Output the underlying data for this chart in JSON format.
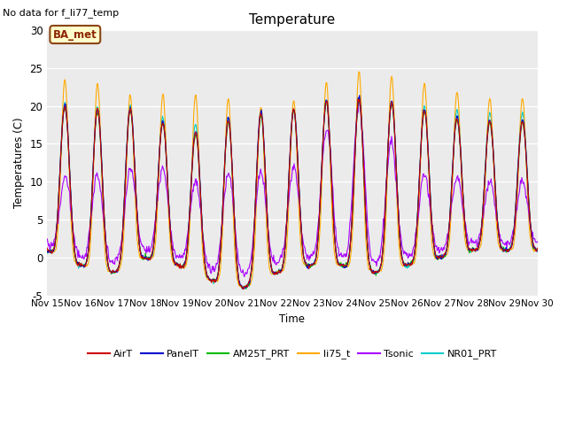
{
  "title": "Temperature",
  "ylabel": "Temperatures (C)",
  "xlabel": "Time",
  "no_data_text": "No data for f_li77_temp",
  "station_label": "BA_met",
  "ylim": [
    -5,
    30
  ],
  "xlim": [
    0,
    15
  ],
  "yticks": [
    -5,
    0,
    5,
    10,
    15,
    20,
    25,
    30
  ],
  "xtick_labels": [
    "Nov 15",
    "Nov 16",
    "Nov 17",
    "Nov 18",
    "Nov 19",
    "Nov 20",
    "Nov 21",
    "Nov 22",
    "Nov 23",
    "Nov 24",
    "Nov 25",
    "Nov 26",
    "Nov 27",
    "Nov 28",
    "Nov 29",
    "Nov 30"
  ],
  "series": {
    "AirT": {
      "color": "#cc0000",
      "lw": 0.8
    },
    "PanelT": {
      "color": "#0000cc",
      "lw": 0.8
    },
    "AM25T_PRT": {
      "color": "#00bb00",
      "lw": 0.8
    },
    "li75_t": {
      "color": "#ffaa00",
      "lw": 0.8
    },
    "Tsonic": {
      "color": "#aa00ff",
      "lw": 0.8
    },
    "NR01_PRT": {
      "color": "#00cccc",
      "lw": 0.8
    }
  },
  "plot_bg_color": "#ebebeb",
  "n_days": 15,
  "pts_per_day": 48,
  "day_min": [
    1,
    -1,
    -2,
    0,
    -1,
    -3,
    -4,
    -2,
    -1,
    -1,
    -2,
    -1,
    0,
    1,
    1
  ],
  "day_max_air": [
    20,
    20,
    19,
    20,
    16,
    17,
    19,
    19,
    20,
    21,
    21,
    20,
    19,
    18,
    18
  ],
  "day_max_li75": [
    23,
    24,
    22,
    21,
    22,
    21,
    21,
    19,
    22,
    24,
    25,
    23,
    23,
    21,
    21
  ],
  "day_max_tsonic": [
    8,
    13,
    9,
    14,
    10,
    10,
    12,
    11,
    13,
    20,
    20,
    11,
    11,
    10,
    10
  ],
  "day_max_nr01": [
    21,
    20,
    20,
    20,
    17,
    18,
    19,
    19,
    20,
    21,
    21,
    20,
    20,
    19,
    19
  ]
}
